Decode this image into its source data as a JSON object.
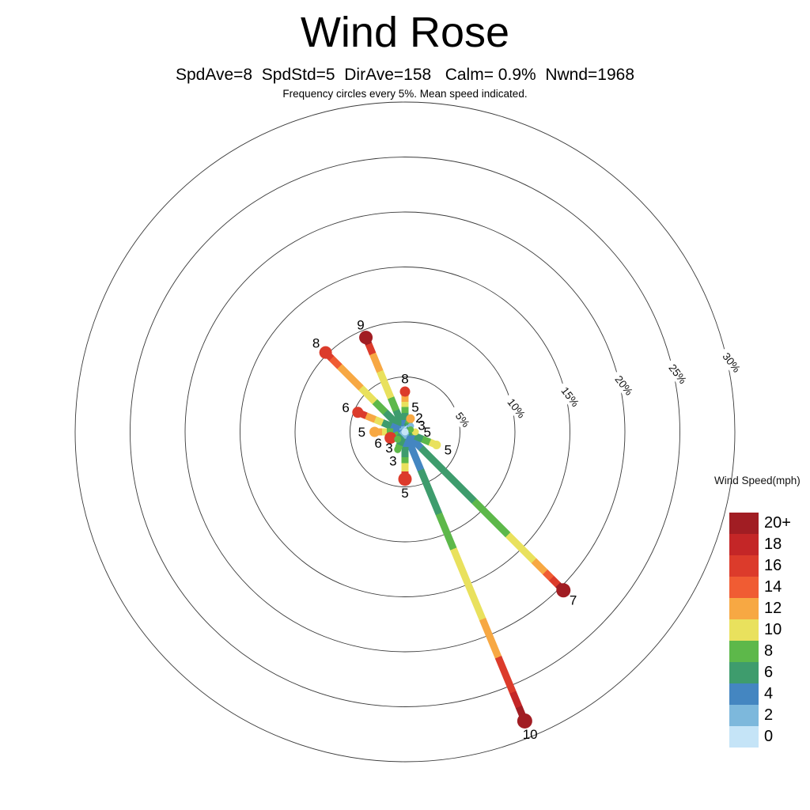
{
  "page": {
    "background": "#ffffff"
  },
  "chart_data": {
    "type": "windrose",
    "title": "Wind Rose",
    "stats_line": "SpdAve=8  SpdStd=5  DirAve=158   Calm= 0.9%  Nwnd=1968",
    "stats": {
      "spd_ave": 8,
      "spd_std": 5,
      "dir_ave": 158,
      "calm_pct": 0.9,
      "nwnd": 1968
    },
    "note": "Frequency circles every 5%. Mean speed indicated.",
    "frequency_ring_step_pct": 5,
    "rings": [
      {
        "pct": 5,
        "label": "5%"
      },
      {
        "pct": 10,
        "label": "10%"
      },
      {
        "pct": 15,
        "label": "15%"
      },
      {
        "pct": 20,
        "label": "20%"
      },
      {
        "pct": 25,
        "label": "25%"
      },
      {
        "pct": 30,
        "label": "30%"
      }
    ],
    "palette": {
      "0": "#c5e4f7",
      "2": "#7db8dc",
      "4": "#4486c1",
      "6": "#3e9c6d",
      "8": "#5db84a",
      "10": "#e9e15d",
      "12": "#f7a843",
      "14": "#f05c33",
      "16": "#dc3b2b",
      "18": "#c42627",
      "20+": "#a11d23"
    },
    "legend": {
      "title": "Wind Speed(mph)",
      "position": "right",
      "entries": [
        {
          "label": "20+",
          "color_key": "20+"
        },
        {
          "label": "18",
          "color_key": "18"
        },
        {
          "label": "16",
          "color_key": "16"
        },
        {
          "label": "14",
          "color_key": "14"
        },
        {
          "label": "12",
          "color_key": "12"
        },
        {
          "label": "10",
          "color_key": "10"
        },
        {
          "label": "8",
          "color_key": "8"
        },
        {
          "label": "6",
          "color_key": "6"
        },
        {
          "label": "4",
          "color_key": "4"
        },
        {
          "label": "2",
          "color_key": "2"
        },
        {
          "label": "0",
          "color_key": "0"
        }
      ]
    },
    "directions": [
      {
        "dir": "N",
        "azimuth_deg": 0,
        "mean_speed": "8",
        "frequency_pct": 3.9,
        "tip_r": 6.5,
        "stops": [
          [
            "2",
            0,
            0.13
          ],
          [
            "4",
            0.13,
            0.28
          ],
          [
            "6",
            0.28,
            0.44
          ],
          [
            "8",
            0.44,
            0.58
          ],
          [
            "10",
            0.58,
            0.7
          ],
          [
            "12",
            0.7,
            0.84
          ],
          [
            "16",
            0.84,
            1
          ]
        ]
      },
      {
        "dir": "NNE",
        "azimuth_deg": 22.5,
        "mean_speed": "5",
        "frequency_pct": 1.5,
        "tip_r": 5.5,
        "stops": [
          [
            "2",
            0,
            0.32
          ],
          [
            "6",
            0.32,
            0.52
          ],
          [
            "8",
            0.52,
            0.68
          ],
          [
            "12",
            0.68,
            1
          ]
        ]
      },
      {
        "dir": "NE",
        "azimuth_deg": 45,
        "mean_speed": "2",
        "frequency_pct": 0.9,
        "tip_r": 4,
        "stops": [
          [
            "0",
            0,
            0.5
          ],
          [
            "2",
            0.5,
            1
          ]
        ]
      },
      {
        "dir": "ENE",
        "azimuth_deg": 67.5,
        "mean_speed": "3",
        "frequency_pct": 0.7,
        "tip_r": 4,
        "stops": [
          [
            "2",
            0,
            0.42
          ],
          [
            "6",
            0.42,
            0.72
          ],
          [
            "8",
            0.72,
            1
          ]
        ]
      },
      {
        "dir": "E",
        "azimuth_deg": 90,
        "mean_speed": "5",
        "frequency_pct": 1.1,
        "tip_r": 4.5,
        "stops": [
          [
            "2",
            0,
            0.28
          ],
          [
            "6",
            0.28,
            0.55
          ],
          [
            "8",
            0.55,
            0.75
          ],
          [
            "10",
            0.75,
            1
          ]
        ]
      },
      {
        "dir": "ESE",
        "azimuth_deg": 112.5,
        "mean_speed": "5",
        "frequency_pct": 3.3,
        "tip_r": 5.5,
        "stops": [
          [
            "2",
            0,
            0.1
          ],
          [
            "4",
            0.1,
            0.3
          ],
          [
            "6",
            0.3,
            0.52
          ],
          [
            "8",
            0.52,
            0.74
          ],
          [
            "10",
            0.74,
            1
          ]
        ]
      },
      {
        "dir": "SE",
        "azimuth_deg": 135,
        "mean_speed": "7",
        "frequency_pct": 20.7,
        "tip_r": 9,
        "stops": [
          [
            "2",
            0,
            0.02
          ],
          [
            "4",
            0.02,
            0.1
          ],
          [
            "6",
            0.1,
            0.43
          ],
          [
            "8",
            0.43,
            0.64
          ],
          [
            "10",
            0.64,
            0.8
          ],
          [
            "12",
            0.8,
            0.87
          ],
          [
            "14",
            0.87,
            0.91
          ],
          [
            "16",
            0.91,
            0.95
          ],
          [
            "20+",
            0.95,
            1
          ]
        ]
      },
      {
        "dir": "SSE",
        "azimuth_deg": 157.5,
        "mean_speed": "10",
        "frequency_pct": 28.8,
        "tip_r": 9.5,
        "stops": [
          [
            "2",
            0,
            0.02
          ],
          [
            "4",
            0.02,
            0.13
          ],
          [
            "6",
            0.13,
            0.28
          ],
          [
            "8",
            0.28,
            0.4
          ],
          [
            "10",
            0.4,
            0.64
          ],
          [
            "12",
            0.64,
            0.77
          ],
          [
            "16",
            0.77,
            0.89
          ],
          [
            "18",
            0.89,
            0.94
          ],
          [
            "20+",
            0.94,
            1
          ]
        ]
      },
      {
        "dir": "S",
        "azimuth_deg": 180,
        "mean_speed": "5",
        "frequency_pct": 4.6,
        "tip_r": 8.5,
        "stops": [
          [
            "4",
            0,
            0.3
          ],
          [
            "6",
            0.3,
            0.5
          ],
          [
            "8",
            0.5,
            0.62
          ],
          [
            "10",
            0.62,
            0.78
          ],
          [
            "16",
            0.78,
            1
          ]
        ]
      },
      {
        "dir": "SSW",
        "azimuth_deg": 202.5,
        "mean_speed": "3",
        "frequency_pct": 1.9,
        "tip_r": 4.5,
        "stops": [
          [
            "2",
            0,
            0.3
          ],
          [
            "6",
            0.3,
            0.68
          ],
          [
            "8",
            0.68,
            1
          ]
        ]
      },
      {
        "dir": "SW",
        "azimuth_deg": 225,
        "mean_speed": "3",
        "frequency_pct": 1.1,
        "tip_r": 4.5,
        "stops": [
          [
            "2",
            0,
            0.4
          ],
          [
            "6",
            0.4,
            0.7
          ],
          [
            "8",
            0.7,
            1
          ]
        ]
      },
      {
        "dir": "WSW",
        "azimuth_deg": 247.5,
        "mean_speed": "6",
        "frequency_pct": 1.7,
        "tip_r": 7.5,
        "stops": [
          [
            "4",
            0,
            0.35
          ],
          [
            "8",
            0.35,
            0.55
          ],
          [
            "16",
            0.55,
            1
          ]
        ]
      },
      {
        "dir": "W",
        "azimuth_deg": 270,
        "mean_speed": "5",
        "frequency_pct": 3.0,
        "tip_r": 6.5,
        "stops": [
          [
            "2",
            0,
            0.17
          ],
          [
            "4",
            0.17,
            0.36
          ],
          [
            "8",
            0.36,
            0.55
          ],
          [
            "10",
            0.55,
            0.7
          ],
          [
            "12",
            0.7,
            1
          ]
        ]
      },
      {
        "dir": "WNW",
        "azimuth_deg": 292.5,
        "mean_speed": "6",
        "frequency_pct": 4.9,
        "tip_r": 7,
        "stops": [
          [
            "2",
            0,
            0.1
          ],
          [
            "4",
            0.1,
            0.28
          ],
          [
            "6",
            0.28,
            0.45
          ],
          [
            "10",
            0.45,
            0.6
          ],
          [
            "12",
            0.6,
            0.78
          ],
          [
            "16",
            0.78,
            1
          ]
        ]
      },
      {
        "dir": "NW",
        "azimuth_deg": 315,
        "mean_speed": "8",
        "frequency_pct": 10.5,
        "tip_r": 8,
        "stops": [
          [
            "4",
            0,
            0.07
          ],
          [
            "6",
            0.07,
            0.24
          ],
          [
            "8",
            0.24,
            0.37
          ],
          [
            "10",
            0.37,
            0.54
          ],
          [
            "12",
            0.54,
            0.8
          ],
          [
            "14",
            0.8,
            0.9
          ],
          [
            "16",
            0.9,
            1
          ]
        ]
      },
      {
        "dir": "NNW",
        "azimuth_deg": 337.5,
        "mean_speed": "9",
        "frequency_pct": 9.6,
        "tip_r": 8.5,
        "stops": [
          [
            "4",
            0,
            0.07
          ],
          [
            "6",
            0.07,
            0.22
          ],
          [
            "8",
            0.22,
            0.35
          ],
          [
            "10",
            0.35,
            0.62
          ],
          [
            "12",
            0.62,
            0.8
          ],
          [
            "16",
            0.8,
            0.9
          ],
          [
            "20+",
            0.9,
            1
          ]
        ]
      }
    ]
  }
}
